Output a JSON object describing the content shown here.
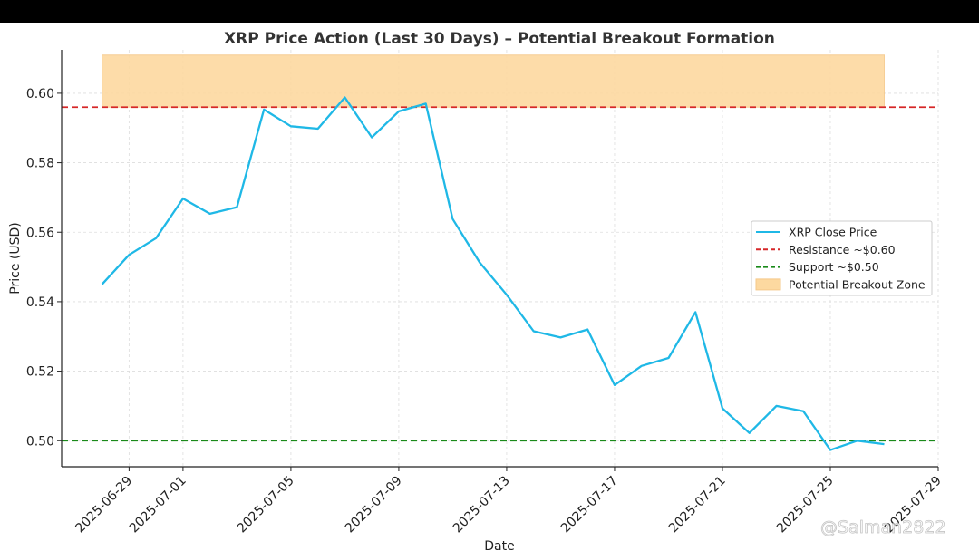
{
  "chart_data": {
    "type": "line",
    "title": "XRP Price Action (Last 30 Days) – Potential Breakout Formation",
    "xlabel": "Date",
    "ylabel": "Price (USD)",
    "x_tick_labels": [
      "2025-06-29",
      "2025-07-01",
      "2025-07-05",
      "2025-07-09",
      "2025-07-13",
      "2025-07-17",
      "2025-07-21",
      "2025-07-25",
      "2025-07-29"
    ],
    "y_ticks": [
      0.5,
      0.52,
      0.54,
      0.56,
      0.58,
      0.6
    ],
    "ylim": [
      0.4925,
      0.6125
    ],
    "xlim": [
      "2025-06-26T12:00",
      "2025-07-29"
    ],
    "grid": true,
    "legend_position": "center-right",
    "series": [
      {
        "name": "XRP Close Price",
        "color": "#1fb8e6",
        "x": [
          "2025-06-28",
          "2025-06-29",
          "2025-06-30",
          "2025-07-01",
          "2025-07-02",
          "2025-07-03",
          "2025-07-04",
          "2025-07-05",
          "2025-07-06",
          "2025-07-07",
          "2025-07-08",
          "2025-07-09",
          "2025-07-10",
          "2025-07-11",
          "2025-07-12",
          "2025-07-13",
          "2025-07-14",
          "2025-07-15",
          "2025-07-16",
          "2025-07-17",
          "2025-07-18",
          "2025-07-19",
          "2025-07-20",
          "2025-07-21",
          "2025-07-22",
          "2025-07-23",
          "2025-07-24",
          "2025-07-25",
          "2025-07-26",
          "2025-07-27"
        ],
        "values": [
          0.545,
          0.5535,
          0.5583,
          0.5697,
          0.5653,
          0.5672,
          0.5953,
          0.5905,
          0.5898,
          0.5988,
          0.5873,
          0.5948,
          0.597,
          0.5638,
          0.5513,
          0.542,
          0.5315,
          0.5297,
          0.532,
          0.516,
          0.5215,
          0.5238,
          0.537,
          0.5093,
          0.5022,
          0.51,
          0.5085,
          0.4973,
          0.5,
          0.499
        ]
      }
    ],
    "reference_lines": [
      {
        "name": "Resistance ~$0.60",
        "y": 0.596,
        "color": "#d62728",
        "style": "dashed"
      },
      {
        "name": "Support ~$0.50",
        "y": 0.5,
        "color": "#1a8a1a",
        "style": "dashed"
      }
    ],
    "shaded_zone": {
      "name": "Potential Breakout Zone",
      "y_range": [
        0.596,
        0.611
      ],
      "x_range": [
        "2025-06-28",
        "2025-07-27"
      ],
      "color": "#fdd9a0"
    },
    "watermark": "@Salman2822"
  }
}
